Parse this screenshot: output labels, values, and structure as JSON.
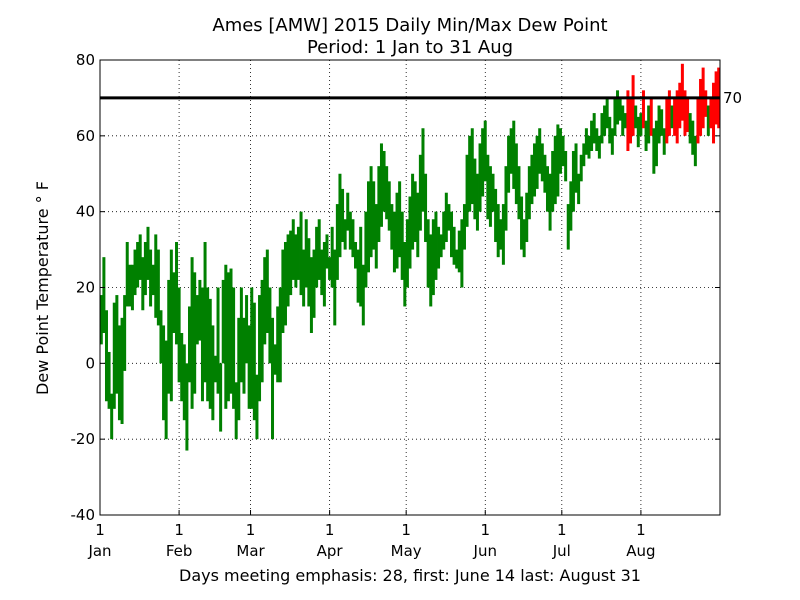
{
  "chart_data": {
    "type": "bar",
    "title": "Ames [AMW] 2015 Daily Min/Max Dew Point",
    "subtitle": "Period: 1 Jan to 31 Aug",
    "ylabel": "Dew Point Temperature ° F",
    "xlabel": "Days meeting emphasis: 28, first: June 14 last: August 31",
    "ylim": [
      -40,
      80
    ],
    "yticks": [
      -40,
      -20,
      0,
      20,
      40,
      60,
      80
    ],
    "xlim_days": [
      0,
      243
    ],
    "month_ticks": [
      {
        "day": 0,
        "label_top": "1",
        "label_bottom": "Jan"
      },
      {
        "day": 31,
        "label_top": "1",
        "label_bottom": "Feb"
      },
      {
        "day": 59,
        "label_top": "1",
        "label_bottom": "Mar"
      },
      {
        "day": 90,
        "label_top": "1",
        "label_bottom": "Apr"
      },
      {
        "day": 120,
        "label_top": "1",
        "label_bottom": "May"
      },
      {
        "day": 151,
        "label_top": "1",
        "label_bottom": "Jun"
      },
      {
        "day": 181,
        "label_top": "1",
        "label_bottom": "Jul"
      },
      {
        "day": 212,
        "label_top": "1",
        "label_bottom": "Aug"
      }
    ],
    "grid": true,
    "threshold": {
      "value": 70,
      "label": "70",
      "color": "#000000"
    },
    "colors": {
      "normal": "#008000",
      "emphasis": "#ff0000"
    },
    "days_meeting_emphasis": 28,
    "first_day": "June 14",
    "last_day": "August 31",
    "series": [
      {
        "values": [
          [
            5,
            18
          ],
          [
            8,
            28
          ],
          [
            -10,
            14
          ],
          [
            -12,
            3
          ],
          [
            -20,
            -8
          ],
          [
            -12,
            16
          ],
          [
            -8,
            18
          ],
          [
            -15,
            10
          ],
          [
            -16,
            12
          ],
          [
            -2,
            18
          ],
          [
            15,
            32
          ],
          [
            15,
            26
          ],
          [
            14,
            26
          ],
          [
            18,
            30
          ],
          [
            20,
            32
          ],
          [
            22,
            34
          ],
          [
            14,
            28
          ],
          [
            18,
            32
          ],
          [
            22,
            36
          ],
          [
            15,
            30
          ],
          [
            18,
            26
          ],
          [
            12,
            34
          ],
          [
            10,
            30
          ],
          [
            0,
            14
          ],
          [
            -15,
            10
          ],
          [
            -20,
            6
          ],
          [
            -8,
            22
          ],
          [
            -10,
            30
          ],
          [
            8,
            24
          ],
          [
            5,
            32
          ],
          [
            -5,
            20
          ],
          [
            -10,
            8
          ],
          [
            -15,
            5
          ],
          [
            -23,
            0
          ],
          [
            -5,
            15
          ],
          [
            -12,
            28
          ],
          [
            -8,
            24
          ],
          [
            5,
            18
          ],
          [
            6,
            22
          ],
          [
            -10,
            20
          ],
          [
            -5,
            32
          ],
          [
            -10,
            20
          ],
          [
            -12,
            17
          ],
          [
            -15,
            10
          ],
          [
            -5,
            2
          ],
          [
            -8,
            20
          ],
          [
            -18,
            0
          ],
          [
            0,
            22
          ],
          [
            -12,
            26
          ],
          [
            -10,
            24
          ],
          [
            -8,
            25
          ],
          [
            -12,
            20
          ],
          [
            -20,
            -5
          ],
          [
            -15,
            12
          ],
          [
            -5,
            20
          ],
          [
            -8,
            12
          ],
          [
            0,
            18
          ],
          [
            -12,
            10
          ],
          [
            -12,
            20
          ],
          [
            -15,
            16
          ],
          [
            -20,
            -3
          ],
          [
            -10,
            18
          ],
          [
            -5,
            22
          ],
          [
            5,
            28
          ],
          [
            8,
            30
          ],
          [
            0,
            20
          ],
          [
            -20,
            12
          ],
          [
            -3,
            5
          ],
          [
            -5,
            15
          ],
          [
            -5,
            20
          ],
          [
            8,
            30
          ],
          [
            10,
            32
          ],
          [
            15,
            34
          ],
          [
            18,
            35
          ],
          [
            22,
            38
          ],
          [
            20,
            34
          ],
          [
            22,
            36
          ],
          [
            18,
            40
          ],
          [
            15,
            30
          ],
          [
            20,
            38
          ],
          [
            15,
            33
          ],
          [
            8,
            28
          ],
          [
            12,
            30
          ],
          [
            20,
            36
          ],
          [
            22,
            38
          ],
          [
            18,
            30
          ],
          [
            15,
            32
          ],
          [
            25,
            34
          ],
          [
            22,
            28
          ],
          [
            20,
            36
          ],
          [
            10,
            30
          ],
          [
            22,
            42
          ],
          [
            28,
            50
          ],
          [
            32,
            46
          ],
          [
            30,
            38
          ],
          [
            35,
            45
          ],
          [
            30,
            40
          ],
          [
            28,
            38
          ],
          [
            25,
            32
          ],
          [
            16,
            30
          ],
          [
            15,
            36
          ],
          [
            10,
            26
          ],
          [
            20,
            40
          ],
          [
            24,
            48
          ],
          [
            28,
            52
          ],
          [
            30,
            48
          ],
          [
            25,
            42
          ],
          [
            32,
            52
          ],
          [
            36,
            58
          ],
          [
            40,
            56
          ],
          [
            38,
            52
          ],
          [
            35,
            48
          ],
          [
            30,
            42
          ],
          [
            24,
            40
          ],
          [
            25,
            45
          ],
          [
            28,
            48
          ],
          [
            22,
            40
          ],
          [
            15,
            32
          ],
          [
            20,
            38
          ],
          [
            25,
            44
          ],
          [
            30,
            50
          ],
          [
            32,
            48
          ],
          [
            28,
            45
          ],
          [
            35,
            55
          ],
          [
            40,
            62
          ],
          [
            32,
            50
          ],
          [
            20,
            38
          ],
          [
            15,
            34
          ],
          [
            18,
            38
          ],
          [
            22,
            40
          ],
          [
            25,
            36
          ],
          [
            28,
            34
          ],
          [
            30,
            40
          ],
          [
            32,
            45
          ],
          [
            35,
            42
          ],
          [
            28,
            40
          ],
          [
            26,
            36
          ],
          [
            25,
            30
          ],
          [
            24,
            35
          ],
          [
            20,
            38
          ],
          [
            30,
            42
          ],
          [
            36,
            55
          ],
          [
            40,
            60
          ],
          [
            42,
            62
          ],
          [
            38,
            54
          ],
          [
            35,
            50
          ],
          [
            40,
            58
          ],
          [
            44,
            62
          ],
          [
            48,
            64
          ],
          [
            38,
            55
          ],
          [
            36,
            52
          ],
          [
            40,
            50
          ],
          [
            32,
            46
          ],
          [
            28,
            42
          ],
          [
            30,
            38
          ],
          [
            26,
            42
          ],
          [
            35,
            52
          ],
          [
            45,
            60
          ],
          [
            50,
            62
          ],
          [
            46,
            64
          ],
          [
            42,
            58
          ],
          [
            38,
            52
          ],
          [
            30,
            44
          ],
          [
            28,
            38
          ],
          [
            32,
            45
          ],
          [
            38,
            52
          ],
          [
            42,
            55
          ],
          [
            44,
            58
          ],
          [
            46,
            60
          ],
          [
            50,
            62
          ],
          [
            48,
            58
          ],
          [
            45,
            55
          ],
          [
            40,
            52
          ],
          [
            35,
            50
          ],
          [
            40,
            56
          ],
          [
            42,
            60
          ],
          [
            44,
            63
          ],
          [
            50,
            62
          ],
          [
            52,
            60
          ],
          [
            48,
            56
          ],
          [
            30,
            42
          ],
          [
            35,
            48
          ],
          [
            40,
            56
          ],
          [
            45,
            58
          ],
          [
            42,
            50
          ],
          [
            48,
            55
          ],
          [
            52,
            58
          ],
          [
            55,
            62
          ],
          [
            54,
            60
          ],
          [
            56,
            64
          ],
          [
            58,
            66
          ],
          [
            56,
            62
          ],
          [
            54,
            60
          ],
          [
            58,
            66
          ],
          [
            60,
            68
          ],
          [
            62,
            70
          ],
          [
            58,
            65
          ],
          [
            55,
            62
          ],
          [
            60,
            70
          ],
          [
            63,
            72
          ],
          [
            64,
            70
          ],
          [
            60,
            68
          ],
          [
            62,
            66
          ],
          [
            56,
            72
          ],
          [
            58,
            70
          ],
          [
            60,
            76
          ],
          [
            62,
            68
          ],
          [
            57,
            65
          ],
          [
            60,
            66
          ],
          [
            62,
            72
          ],
          [
            56,
            64
          ],
          [
            58,
            68
          ],
          [
            60,
            70
          ],
          [
            50,
            62
          ],
          [
            52,
            64
          ],
          [
            58,
            68
          ],
          [
            60,
            67
          ],
          [
            55,
            62
          ],
          [
            58,
            70
          ],
          [
            60,
            72
          ],
          [
            62,
            68
          ],
          [
            60,
            70
          ],
          [
            58,
            72
          ],
          [
            62,
            74
          ],
          [
            64,
            79
          ],
          [
            60,
            72
          ],
          [
            61,
            70
          ],
          [
            58,
            66
          ],
          [
            55,
            64
          ],
          [
            52,
            60
          ],
          [
            58,
            70
          ],
          [
            60,
            75
          ],
          [
            62,
            78
          ],
          [
            65,
            72
          ],
          [
            60,
            68
          ],
          [
            62,
            70
          ],
          [
            58,
            74
          ],
          [
            63,
            77
          ],
          [
            62,
            78
          ]
        ],
        "emphasis_from_index": 201
      }
    ]
  }
}
